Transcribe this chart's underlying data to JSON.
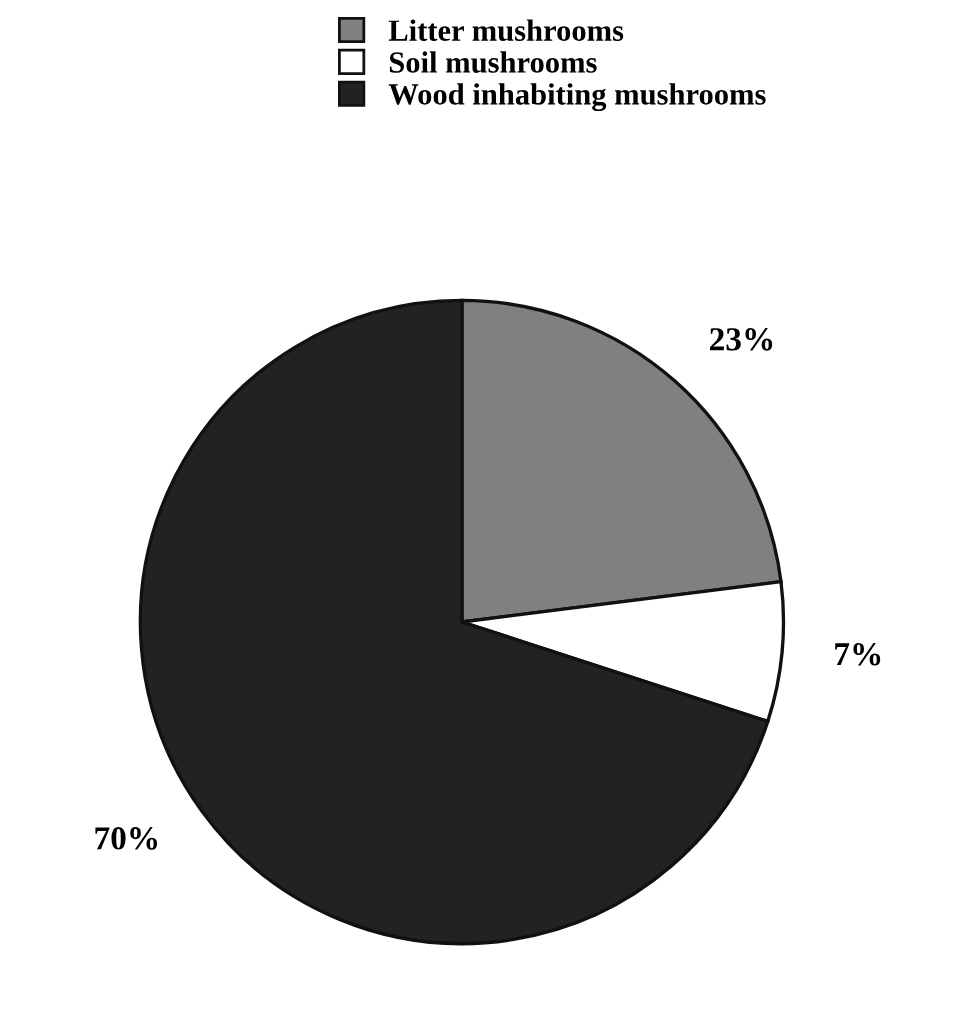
{
  "chart_data": {
    "type": "pie",
    "categories": [
      "Litter mushrooms",
      "Soil mushrooms",
      "Wood inhabiting mushrooms"
    ],
    "values": [
      23,
      7,
      70
    ],
    "value_labels": [
      "23%",
      "7%",
      "70%"
    ],
    "colors": [
      "#808080",
      "#ffffff",
      "#222222"
    ],
    "legend": "top"
  }
}
